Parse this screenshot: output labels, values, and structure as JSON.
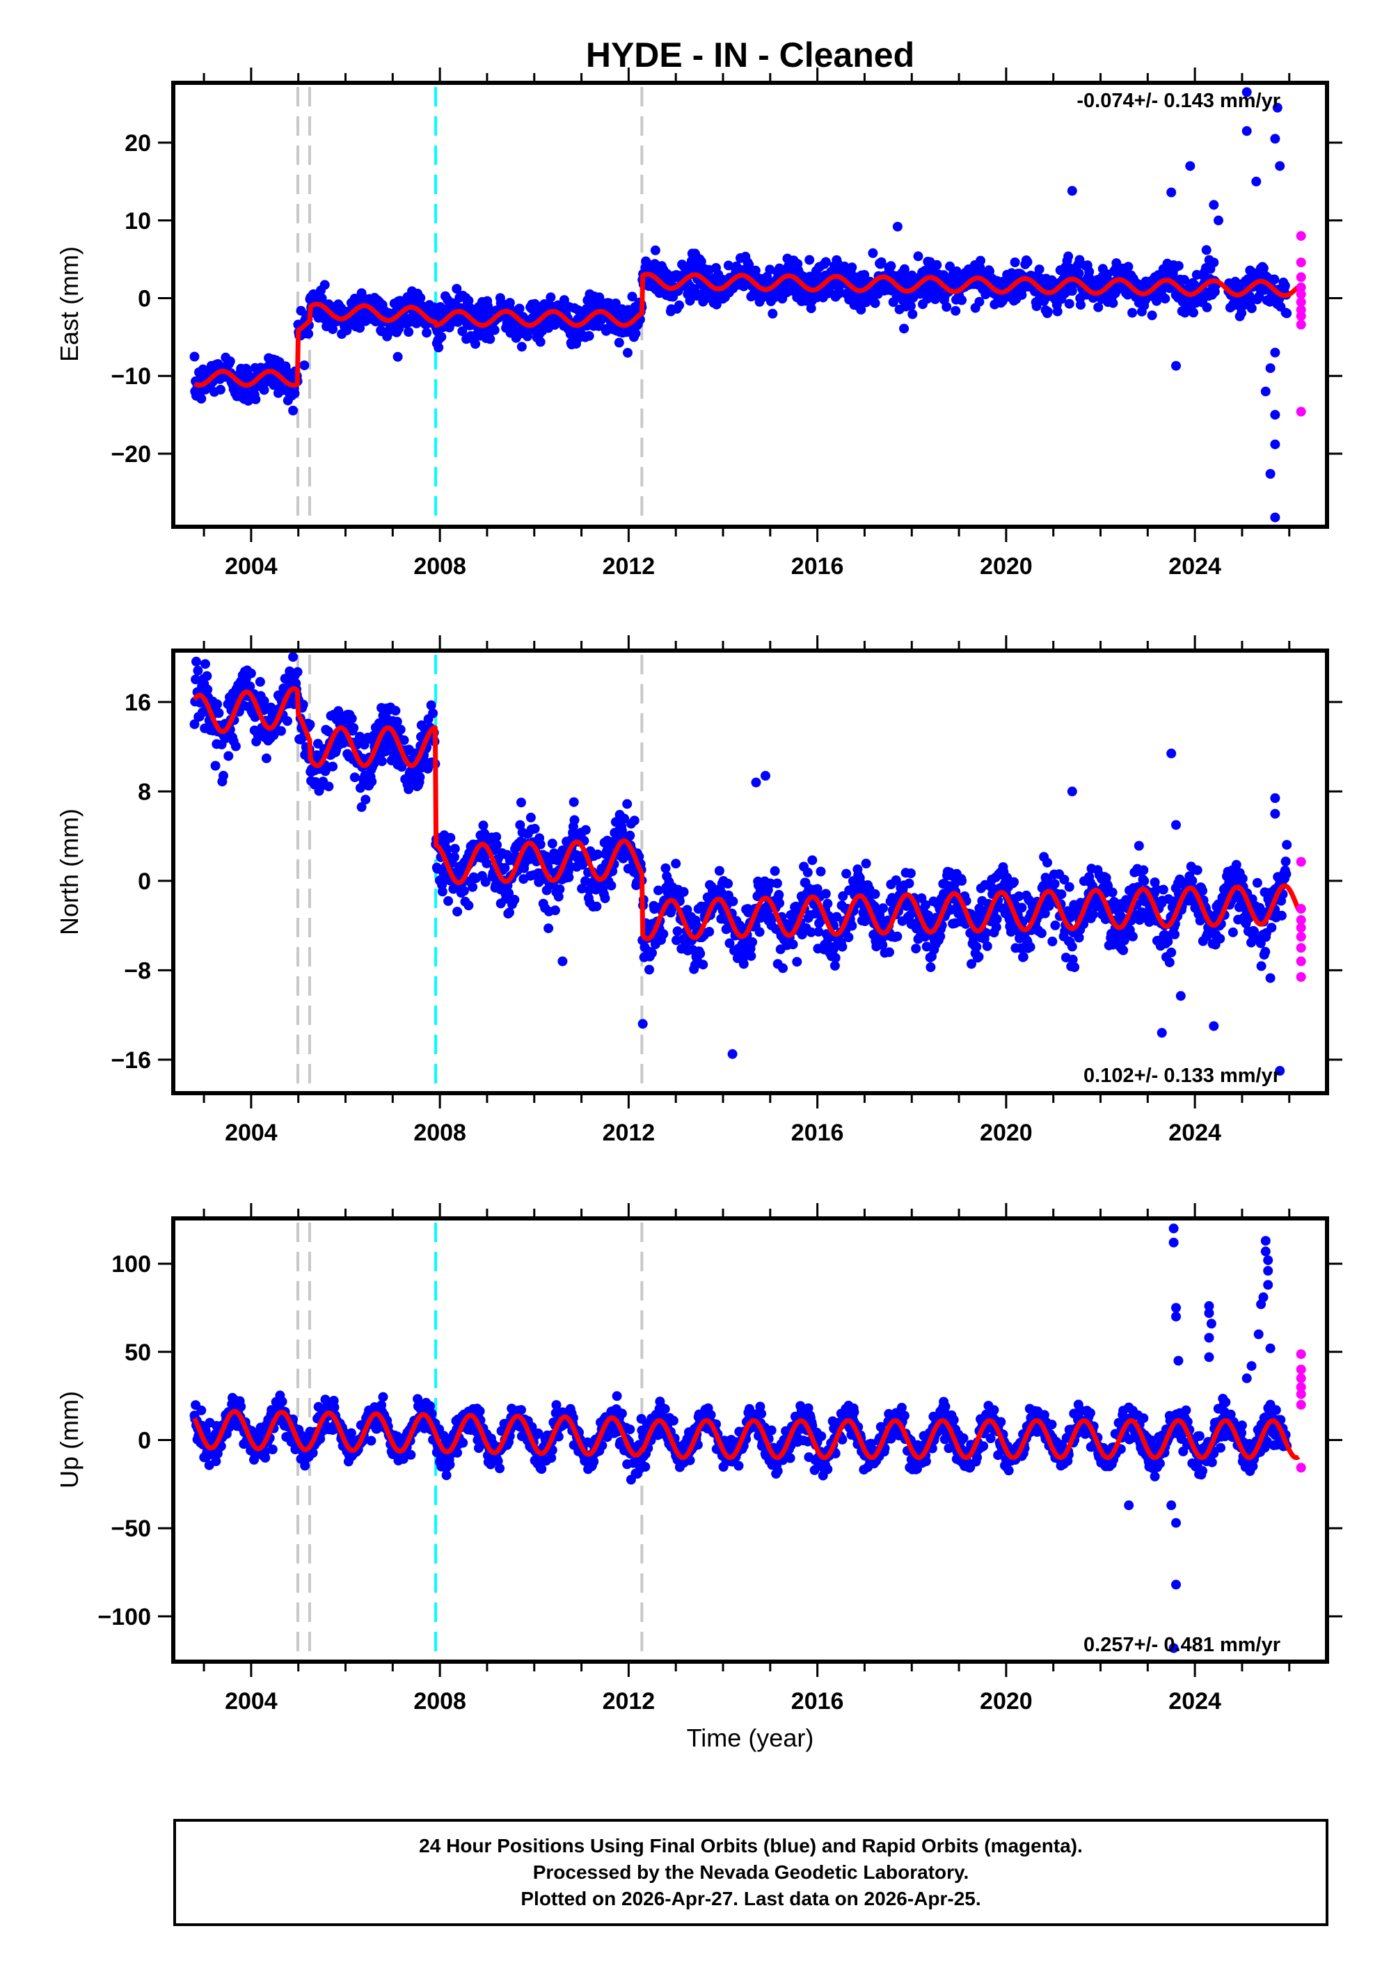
{
  "title": "HYDE  - IN - Cleaned",
  "colors": {
    "final_orbits": "#0000ff",
    "rapid_orbits": "#ff00ff",
    "model": "#ff0000",
    "event_gray": "#c8c8c8",
    "event_cyan": "#00ffff",
    "frame": "#000000"
  },
  "chart_data": [
    {
      "type": "scatter",
      "name": "east",
      "ylabel": "East (mm)",
      "xlabel": "",
      "xlim": [
        2002.35,
        2026.8
      ],
      "ylim": [
        -29.4,
        27.7
      ],
      "xticks": [
        2004,
        2008,
        2012,
        2016,
        2020,
        2024
      ],
      "xtick_labels": [
        "2004",
        "2008",
        "2012",
        "2016",
        "2020",
        "2024"
      ],
      "yticks": [
        20,
        10,
        0,
        -10,
        -20
      ],
      "ytick_labels": [
        "20",
        "10",
        "0",
        "−10",
        "−20"
      ],
      "rate_text": "-0.074+/- 0.143 mm/yr",
      "rate_position": "top-right",
      "event_lines": [
        {
          "x": 2004.99,
          "kind": "gray"
        },
        {
          "x": 2005.24,
          "kind": "gray"
        },
        {
          "x": 2007.91,
          "kind": "cyan"
        },
        {
          "x": 2012.28,
          "kind": "gray"
        }
      ],
      "model": {
        "segments": [
          {
            "x0": 2002.8,
            "x1": 2004.99,
            "offset": -10.3,
            "trend": 0.0
          },
          {
            "x0": 2004.99,
            "x1": 2005.24,
            "offset": -3.4,
            "trend": 0.0
          },
          {
            "x0": 2005.24,
            "x1": 2007.91,
            "offset": -1.9,
            "trend": -0.2
          },
          {
            "x0": 2007.91,
            "x1": 2012.28,
            "offset": -2.6,
            "trend": 0.0
          },
          {
            "x0": 2012.28,
            "x1": 2026.31,
            "offset": 1.7,
            "trend": -0.07
          }
        ],
        "annual_amplitude": 0.9,
        "annual_phase": 0.85
      },
      "scatter_spread": 2.3,
      "outliers_final": [
        [
          2021.4,
          13.8
        ],
        [
          2023.5,
          13.6
        ],
        [
          2023.9,
          17.0
        ],
        [
          2024.4,
          12.0
        ],
        [
          2024.5,
          10.0
        ],
        [
          2025.1,
          26.5
        ],
        [
          2025.1,
          21.5
        ],
        [
          2025.3,
          15.0
        ],
        [
          2025.75,
          24.5
        ],
        [
          2025.7,
          20.5
        ],
        [
          2025.8,
          17.0
        ],
        [
          2025.7,
          -7.0
        ],
        [
          2025.6,
          -9.0
        ],
        [
          2025.5,
          -12.0
        ],
        [
          2025.7,
          -15.0
        ],
        [
          2025.7,
          -18.8
        ],
        [
          2025.7,
          -28.2
        ],
        [
          2025.6,
          -22.6
        ],
        [
          2023.6,
          -8.7
        ],
        [
          2017.7,
          9.2
        ]
      ],
      "rapid_points": [
        [
          2026.25,
          8.0
        ],
        [
          2026.25,
          4.6
        ],
        [
          2026.25,
          2.7
        ],
        [
          2026.25,
          1.4
        ],
        [
          2026.25,
          0.5
        ],
        [
          2026.25,
          -0.5
        ],
        [
          2026.25,
          -1.5
        ],
        [
          2026.25,
          -2.3
        ],
        [
          2026.25,
          -3.4
        ],
        [
          2026.25,
          -14.6
        ]
      ]
    },
    {
      "type": "scatter",
      "name": "north",
      "ylabel": "North (mm)",
      "xlabel": "",
      "xlim": [
        2002.35,
        2026.8
      ],
      "ylim": [
        -19.0,
        20.6
      ],
      "xticks": [
        2004,
        2008,
        2012,
        2016,
        2020,
        2024
      ],
      "xtick_labels": [
        "2004",
        "2008",
        "2012",
        "2016",
        "2020",
        "2024"
      ],
      "yticks": [
        16,
        8,
        0,
        -8,
        -16
      ],
      "ytick_labels": [
        "16",
        "8",
        "0",
        "−8",
        "−16"
      ],
      "rate_text": "0.102+/- 0.133 mm/yr",
      "rate_position": "bottom-right",
      "event_lines": [
        {
          "x": 2004.99,
          "kind": "gray"
        },
        {
          "x": 2005.24,
          "kind": "gray"
        },
        {
          "x": 2007.91,
          "kind": "cyan"
        },
        {
          "x": 2012.28,
          "kind": "gray"
        }
      ],
      "model": {
        "segments": [
          {
            "x0": 2002.8,
            "x1": 2004.99,
            "offset": 15.2,
            "trend": 0.3
          },
          {
            "x0": 2004.99,
            "x1": 2005.24,
            "offset": 13.5,
            "trend": 0.0
          },
          {
            "x0": 2005.24,
            "x1": 2007.91,
            "offset": 12.0,
            "trend": 0.0
          },
          {
            "x0": 2007.91,
            "x1": 2012.28,
            "offset": 1.7,
            "trend": 0.1
          },
          {
            "x0": 2012.28,
            "x1": 2026.31,
            "offset": -2.8,
            "trend": 0.1
          }
        ],
        "annual_amplitude": 1.7,
        "annual_phase": 0.35
      },
      "scatter_spread": 2.6,
      "outliers_final": [
        [
          2014.9,
          9.4
        ],
        [
          2014.7,
          8.8
        ],
        [
          2021.4,
          8.0
        ],
        [
          2023.5,
          11.4
        ],
        [
          2023.6,
          5.0
        ],
        [
          2025.7,
          7.4
        ],
        [
          2025.7,
          6.0
        ],
        [
          2012.3,
          -12.8
        ],
        [
          2014.2,
          -15.5
        ],
        [
          2023.3,
          -13.6
        ],
        [
          2024.4,
          -13.0
        ],
        [
          2023.7,
          -10.3
        ],
        [
          2010.6,
          -7.2
        ],
        [
          2025.8,
          -17.0
        ],
        [
          2025.6,
          -8.7
        ]
      ],
      "rapid_points": [
        [
          2026.25,
          1.7
        ],
        [
          2026.25,
          -2.5
        ],
        [
          2026.25,
          -3.5
        ],
        [
          2026.25,
          -4.2
        ],
        [
          2026.25,
          -5.0
        ],
        [
          2026.25,
          -6.0
        ],
        [
          2026.25,
          -7.2
        ],
        [
          2026.25,
          -8.6
        ]
      ]
    },
    {
      "type": "scatter",
      "name": "up",
      "ylabel": "Up (mm)",
      "xlabel": "Time (year)",
      "xlim": [
        2002.35,
        2026.8
      ],
      "ylim": [
        -125.7,
        125.7
      ],
      "xticks": [
        2004,
        2008,
        2012,
        2016,
        2020,
        2024
      ],
      "xtick_labels": [
        "2004",
        "2008",
        "2012",
        "2016",
        "2020",
        "2024"
      ],
      "yticks": [
        100,
        50,
        0,
        -50,
        -100
      ],
      "ytick_labels": [
        "100",
        "50",
        "0",
        "−50",
        "−100"
      ],
      "rate_text": "0.257+/- 0.481 mm/yr",
      "rate_position": "bottom-right",
      "event_lines": [
        {
          "x": 2004.99,
          "kind": "gray"
        },
        {
          "x": 2005.24,
          "kind": "gray"
        },
        {
          "x": 2007.91,
          "kind": "cyan"
        },
        {
          "x": 2012.28,
          "kind": "gray"
        }
      ],
      "model": {
        "segments": [
          {
            "x0": 2002.8,
            "x1": 2012.28,
            "offset": 4.0,
            "trend": -0.45
          },
          {
            "x0": 2012.28,
            "x1": 2026.31,
            "offset": 0.5,
            "trend": 0.0
          }
        ],
        "annual_amplitude": 10.5,
        "annual_phase": 0.6
      },
      "scatter_spread": 9.0,
      "outliers_final": [
        [
          2023.55,
          120
        ],
        [
          2023.55,
          112
        ],
        [
          2023.6,
          75
        ],
        [
          2023.6,
          70
        ],
        [
          2023.65,
          45
        ],
        [
          2023.5,
          -37
        ],
        [
          2023.6,
          -47
        ],
        [
          2023.6,
          -82
        ],
        [
          2023.55,
          -118
        ],
        [
          2024.3,
          76
        ],
        [
          2024.3,
          72
        ],
        [
          2024.35,
          66
        ],
        [
          2024.3,
          58
        ],
        [
          2024.3,
          47
        ],
        [
          2025.5,
          113
        ],
        [
          2025.5,
          107
        ],
        [
          2025.55,
          102
        ],
        [
          2025.55,
          96
        ],
        [
          2025.45,
          81
        ],
        [
          2025.4,
          77
        ],
        [
          2025.55,
          88
        ],
        [
          2025.35,
          60
        ],
        [
          2025.6,
          52
        ],
        [
          2025.2,
          42
        ],
        [
          2025.1,
          35
        ],
        [
          2022.6,
          -37
        ]
      ],
      "rapid_points": [
        [
          2026.25,
          48.7
        ],
        [
          2026.25,
          40
        ],
        [
          2026.25,
          35
        ],
        [
          2026.25,
          30
        ],
        [
          2026.25,
          26
        ],
        [
          2026.25,
          20
        ],
        [
          2026.25,
          -15.7
        ]
      ]
    }
  ],
  "footer": {
    "line1": "24 Hour Positions Using Final Orbits (blue) and Rapid Orbits (magenta).",
    "line2": "Processed by the Nevada Geodetic Laboratory.",
    "line3": "Plotted on 2026-Apr-27. Last data on 2026-Apr-25."
  }
}
